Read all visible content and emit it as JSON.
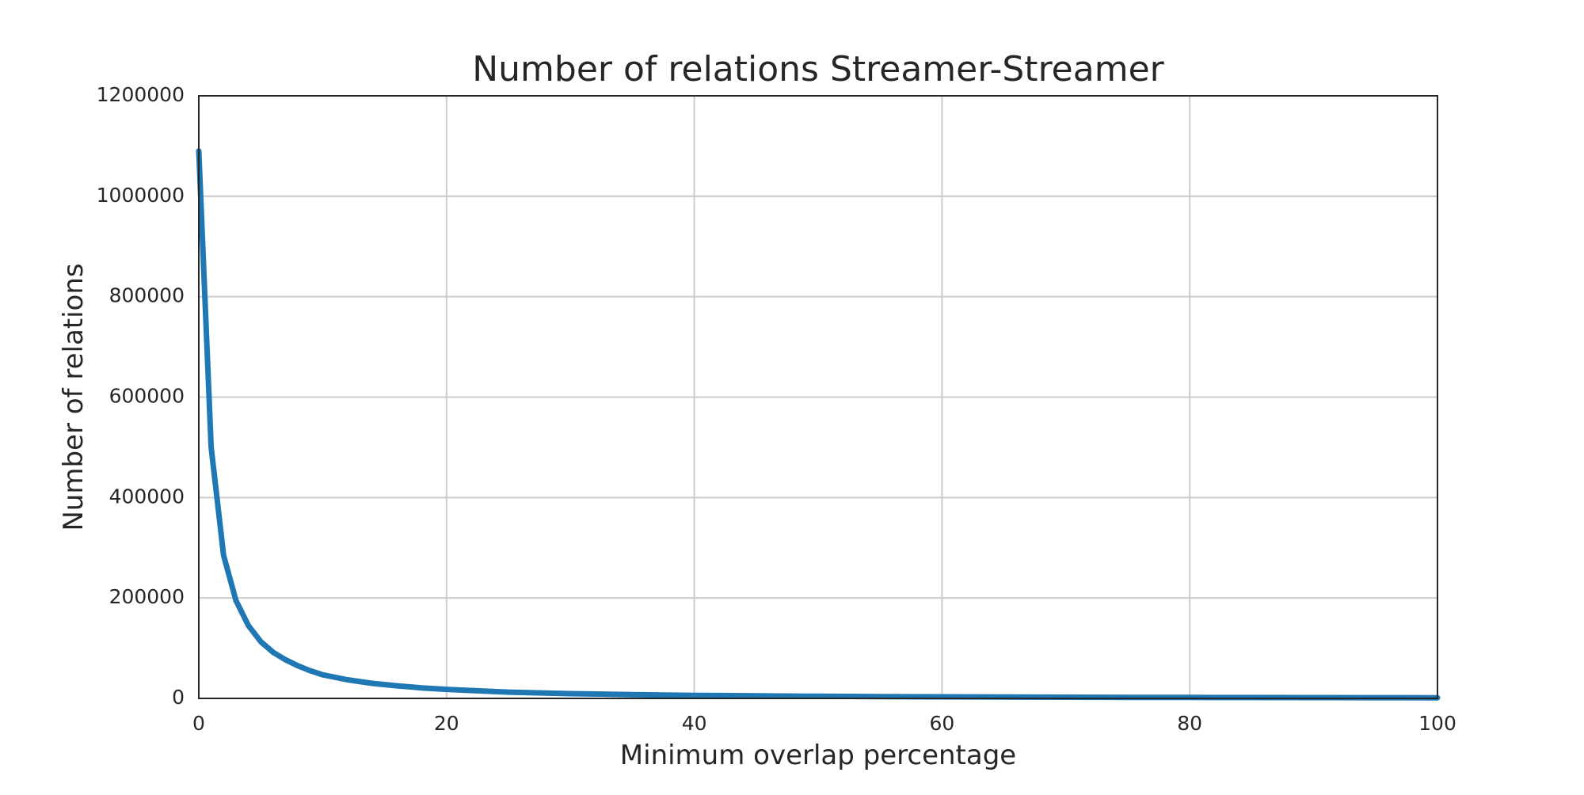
{
  "chart_data": {
    "type": "line",
    "title": "Number of relations Streamer-Streamer",
    "xlabel": "Minimum overlap percentage",
    "ylabel": "Number of relations",
    "xlim": [
      0,
      100
    ],
    "ylim": [
      0,
      1200000
    ],
    "x_ticks": [
      0,
      20,
      40,
      60,
      80,
      100
    ],
    "x_tick_labels": [
      "0",
      "20",
      "40",
      "60",
      "80",
      "100"
    ],
    "y_ticks": [
      0,
      200000,
      400000,
      600000,
      800000,
      1000000,
      1200000
    ],
    "y_tick_labels": [
      "0",
      "200000",
      "400000",
      "600000",
      "800000",
      "1000000",
      "1200000"
    ],
    "grid": true,
    "legend": "none",
    "series": [
      {
        "color": "#1f77b4",
        "x": [
          0,
          1,
          2,
          3,
          4,
          5,
          6,
          7,
          8,
          9,
          10,
          12,
          14,
          16,
          18,
          20,
          25,
          30,
          35,
          40,
          45,
          50,
          55,
          60,
          65,
          70,
          75,
          80,
          85,
          90,
          95,
          100
        ],
        "y": [
          1090000,
          500000,
          285000,
          195000,
          145000,
          113000,
          92000,
          77000,
          65000,
          55000,
          47000,
          37000,
          30000,
          25000,
          21000,
          18000,
          12500,
          9500,
          7500,
          6000,
          5000,
          4200,
          3600,
          3100,
          2700,
          2400,
          2100,
          1900,
          1700,
          1500,
          1400,
          1300
        ]
      }
    ]
  }
}
